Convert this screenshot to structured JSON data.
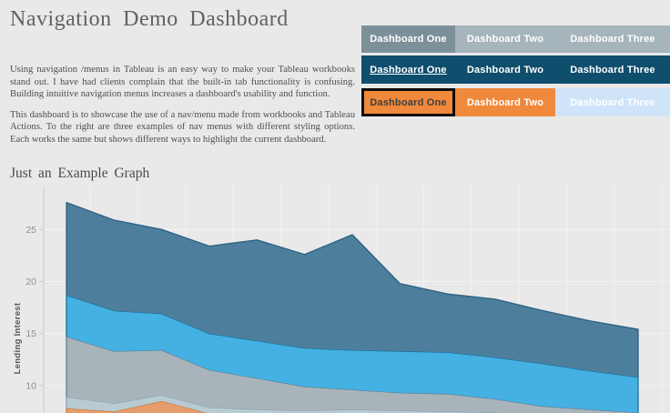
{
  "header": {
    "title": "Navigation Demo Dashboard"
  },
  "intro": {
    "p1": "Using navigation /menus in Tableau is an easy way to make your Tableau workbooks stand out. I have had clients complain that the built-in tab functionality is confusing. Building intuitive navigation menus increases a dashboard's usability and function.",
    "p2": "This dashboard is to showcase the use of a nav/menu made from workbooks and Tableau Actions. To the right are three examples of nav menus with different styling options. Each works the same but shows different ways to highlight the current dashboard."
  },
  "nav": {
    "menus": [
      {
        "style": "solid-gray",
        "colors": {
          "active": "#7c909a",
          "inactive": "#a6b4bb",
          "text": "#ffffff"
        },
        "items": [
          {
            "label": "Dashboard One",
            "active": true
          },
          {
            "label": "Dashboard Two",
            "active": false
          },
          {
            "label": "Dashboard Three",
            "active": false
          }
        ]
      },
      {
        "style": "underline-teal",
        "colors": {
          "background": "#0f4e6d",
          "text": "#ffffff"
        },
        "items": [
          {
            "label": "Dashboard One",
            "active": true
          },
          {
            "label": "Dashboard Two",
            "active": false
          },
          {
            "label": "Dashboard Three",
            "active": false
          }
        ]
      },
      {
        "style": "boxed-orange",
        "colors": {
          "active_border": "#0d0d0d",
          "orange": "#f0893c",
          "pale_blue": "#cfe4f9",
          "active_text": "#3f3f3f",
          "text": "#ffffff"
        },
        "items": [
          {
            "label": "Dashboard One",
            "active": true
          },
          {
            "label": "Dashboard Two",
            "active": false
          },
          {
            "label": "Dashboard Three",
            "active": false
          }
        ]
      }
    ]
  },
  "chart_data": {
    "type": "area",
    "stacked": true,
    "title": "Just an Example Graph",
    "ylabel": "Lending Interest",
    "yticks": [
      10,
      15,
      20,
      25
    ],
    "ytick_labels": [
      "10",
      "15",
      "20",
      "25"
    ],
    "ylim_visible": [
      6,
      29
    ],
    "x_points": 13,
    "x_axis_labels_visible": false,
    "grid": true,
    "legend": "none",
    "values_are": "cumulative stack tops; chart bottom is cropped off-screen",
    "baseline_value": 5.8,
    "series": [
      {
        "name": "layer-1-orange",
        "fill": "#e79d6b",
        "stroke": "#c97a3f",
        "tops": [
          7.8,
          7.5,
          8.5,
          7.3,
          7.1,
          7.0,
          7.0,
          6.9,
          6.8,
          6.7,
          6.6,
          6.5,
          6.4
        ]
      },
      {
        "name": "layer-2-pale-blue-gray",
        "fill": "#b8cad2",
        "stroke": "#8aa5b2",
        "tops": [
          8.9,
          8.3,
          9.1,
          7.9,
          7.7,
          7.6,
          7.7,
          7.6,
          7.5,
          7.4,
          7.2,
          7.1,
          7.0
        ]
      },
      {
        "name": "layer-3-gray",
        "fill": "#a9b4ba",
        "stroke": "#5e8199",
        "tops": [
          14.7,
          13.3,
          13.4,
          11.5,
          10.7,
          9.9,
          9.6,
          9.3,
          9.2,
          8.7,
          8.0,
          7.7,
          7.4
        ]
      },
      {
        "name": "layer-4-cyan",
        "fill": "#44b1e2",
        "stroke": "#1a6f9f",
        "tops": [
          18.7,
          17.2,
          16.9,
          15.0,
          14.3,
          13.6,
          13.4,
          13.3,
          13.2,
          12.7,
          12.1,
          11.4,
          10.8
        ]
      },
      {
        "name": "layer-5-teal",
        "fill": "#4d7f9c",
        "stroke": "#2d6082",
        "tops": [
          27.6,
          25.9,
          25.0,
          23.4,
          24.0,
          22.6,
          24.5,
          19.8,
          18.8,
          18.3,
          17.2,
          16.2,
          15.4
        ]
      }
    ],
    "colors": {
      "axis": "#cccccc",
      "gridline": "#f3f3f3",
      "tick_text": "#8f8f8f"
    }
  }
}
